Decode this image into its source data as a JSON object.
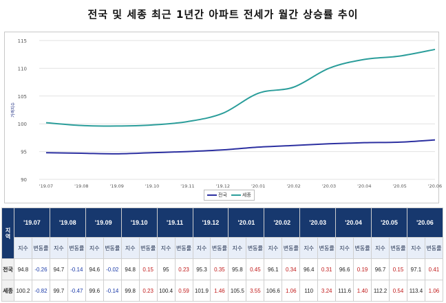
{
  "title": "전국 및 세종 최근 1년간 아파트 전세가 월간 상승률 추이",
  "chart_data": {
    "type": "line",
    "ylabel": "가격지수",
    "ylim": [
      90,
      115
    ],
    "yticks": [
      "90",
      "95",
      "100",
      "105",
      "110",
      "115"
    ],
    "categories": [
      "'19.07",
      "'19.08",
      "'19.09",
      "'19.10",
      "'19.11",
      "'19.12",
      "'20.01",
      "'20.02",
      "'20.03",
      "'20.04",
      "'20.05",
      "'20.06"
    ],
    "grid": "horizontal",
    "legend_position": "bottom",
    "series": [
      {
        "name": "전국",
        "color": "#2b2fa0",
        "values": [
          94.8,
          94.7,
          94.6,
          94.8,
          95.0,
          95.3,
          95.8,
          96.1,
          96.4,
          96.6,
          96.7,
          97.1
        ]
      },
      {
        "name": "세종",
        "color": "#2a9d9a",
        "values": [
          100.2,
          99.7,
          99.6,
          99.8,
          100.4,
          101.9,
          105.5,
          106.6,
          110.0,
          111.6,
          112.2,
          113.4
        ]
      }
    ]
  },
  "table": {
    "region_header": "지역",
    "index_label": "지수",
    "change_label": "변동률",
    "periods": [
      "'19.07",
      "'19.08",
      "'19.09",
      "'19.10",
      "'19.11",
      "'19.12",
      "'20.01",
      "'20.02",
      "'20.03",
      "'20.04",
      "'20.05",
      "'20.06"
    ],
    "rows": [
      {
        "region": "전국",
        "cells": [
          [
            "94.8",
            "-0.26"
          ],
          [
            "94.7",
            "-0.14"
          ],
          [
            "94.6",
            "-0.02"
          ],
          [
            "94.8",
            "0.15"
          ],
          [
            "95",
            "0.23"
          ],
          [
            "95.3",
            "0.35"
          ],
          [
            "95.8",
            "0.45"
          ],
          [
            "96.1",
            "0.34"
          ],
          [
            "96.4",
            "0.31"
          ],
          [
            "96.6",
            "0.19"
          ],
          [
            "96.7",
            "0.15"
          ],
          [
            "97.1",
            "0.41"
          ]
        ]
      },
      {
        "region": "세종",
        "cells": [
          [
            "100.2",
            "-0.82"
          ],
          [
            "99.7",
            "-0.47"
          ],
          [
            "99.6",
            "-0.14"
          ],
          [
            "99.8",
            "0.23"
          ],
          [
            "100.4",
            "0.59"
          ],
          [
            "101.9",
            "1.46"
          ],
          [
            "105.5",
            "3.55"
          ],
          [
            "106.6",
            "1.06"
          ],
          [
            "110",
            "3.24"
          ],
          [
            "111.6",
            "1.40"
          ],
          [
            "112.2",
            "0.54"
          ],
          [
            "113.4",
            "1.06"
          ]
        ]
      }
    ]
  }
}
